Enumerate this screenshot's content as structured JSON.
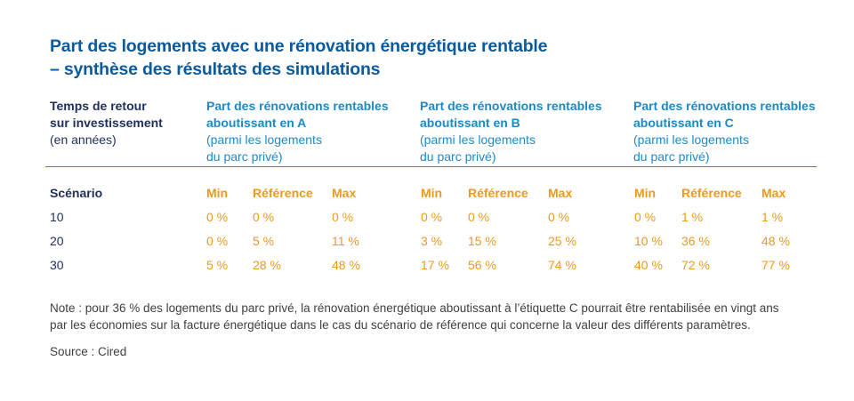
{
  "title_line1": "Part des logements avec une rénovation énergétique rentable",
  "title_line2": "– synthèse des résultats des simulations",
  "header_first": {
    "line1": "Temps de retour",
    "line2": "sur investissement",
    "line3": "(en années)"
  },
  "columns": [
    {
      "line1": "Part des rénovations rentables",
      "line2": "aboutissant en A",
      "line3": "(parmi les logements",
      "line4": "du parc privé)"
    },
    {
      "line1": "Part des rénovations rentables",
      "line2": "aboutissant en B",
      "line3": "(parmi les logements",
      "line4": "du parc privé)"
    },
    {
      "line1": "Part des rénovations rentables",
      "line2": "aboutissant en C",
      "line3": "(parmi les logements",
      "line4": "du parc privé)"
    }
  ],
  "scenario_label": "Scénario",
  "sub_labels": [
    "Min",
    "Référence",
    "Max"
  ],
  "rows": [
    {
      "year": "10",
      "values": [
        "0 %",
        "0 %",
        "0 %",
        "0 %",
        "0 %",
        "0 %",
        "0 %",
        "1 %",
        "1 %"
      ]
    },
    {
      "year": "20",
      "values": [
        "0 %",
        "5 %",
        "11 %",
        "3 %",
        "15 %",
        "25 %",
        "10 %",
        "36 %",
        "48 %"
      ]
    },
    {
      "year": "30",
      "values": [
        "5 %",
        "28 %",
        "48 %",
        "17 %",
        "56 %",
        "74 %",
        "40 %",
        "72 %",
        "77 %"
      ]
    }
  ],
  "note_line1": "Note : pour 36 % des logements du parc privé, la rénovation énergétique aboutissant à l’étiquette C pourrait être rentabilisée en vingt ans",
  "note_line2": "par les économies sur la facture énergétique dans le cas du scénario de référence qui concerne la valeur des différents paramètres.",
  "source": "Source : Cired",
  "colors": {
    "title": "#0a5a9c",
    "header": "#1d8ac8",
    "values": "#ec9a1e",
    "text_dark": "#1f2f5a",
    "note": "#404040"
  }
}
